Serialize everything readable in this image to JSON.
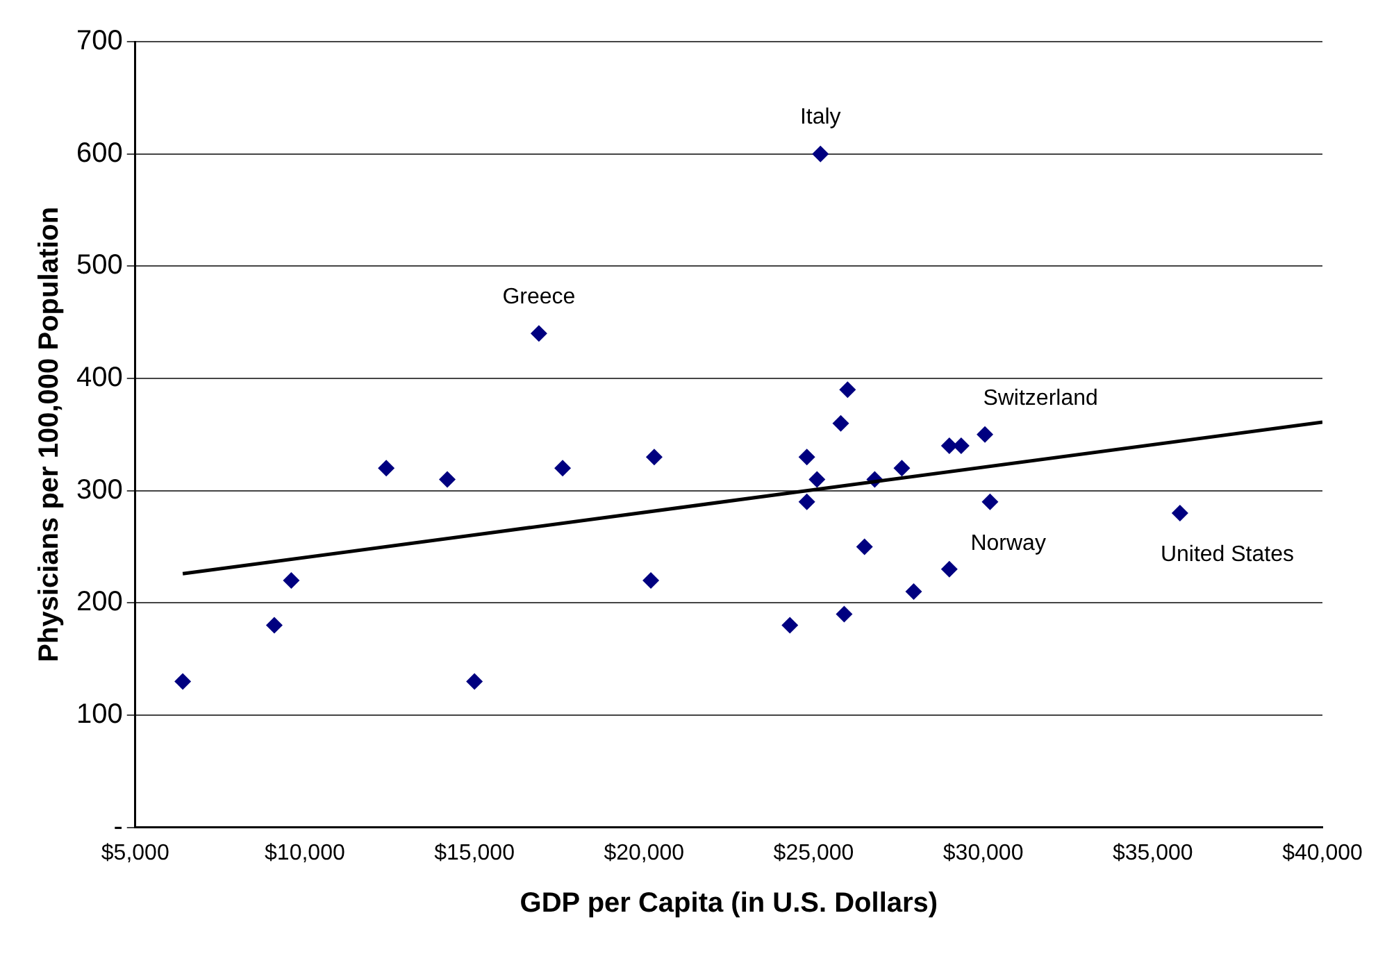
{
  "chart_data": {
    "type": "scatter",
    "xlabel": "GDP per Capita (in U.S. Dollars)",
    "ylabel": "Physicians per 100,000 Population",
    "xlim": [
      5000,
      40000
    ],
    "xticks": [
      {
        "value": 5000,
        "label": "$5,000"
      },
      {
        "value": 10000,
        "label": "$10,000"
      },
      {
        "value": 15000,
        "label": "$15,000"
      },
      {
        "value": 20000,
        "label": "$20,000"
      },
      {
        "value": 25000,
        "label": "$25,000"
      },
      {
        "value": 30000,
        "label": "$30,000"
      },
      {
        "value": 35000,
        "label": "$35,000"
      },
      {
        "value": 40000,
        "label": "$40,000"
      }
    ],
    "ylim": [
      0,
      700
    ],
    "yticks": [
      {
        "value": 0,
        "label": "-"
      },
      100,
      200,
      300,
      400,
      500,
      600,
      700
    ],
    "grid": "y",
    "legend": false,
    "marker": "diamond",
    "series": [
      {
        "type": "scatter",
        "color": "#000080",
        "x": [
          6400,
          9100,
          9600,
          12400,
          14200,
          15000,
          16900,
          17600,
          20300,
          20200,
          24300,
          24800,
          24800,
          25100,
          25200,
          25800,
          26000,
          25900,
          26500,
          26800,
          27600,
          27950,
          29000,
          29350,
          29000,
          30050,
          30200,
          35800
        ],
        "values": [
          130,
          180,
          220,
          320,
          310,
          130,
          440,
          320,
          330,
          220,
          180,
          330,
          290,
          310,
          600,
          360,
          390,
          190,
          250,
          310,
          320,
          210,
          340,
          340,
          230,
          350,
          290,
          280
        ]
      },
      {
        "type": "line",
        "color": "#000000",
        "marker": "none",
        "x": [
          6400,
          40000
        ],
        "values": [
          226,
          361
        ]
      }
    ],
    "annotations": [
      {
        "text": "Italy",
        "x": 25200,
        "y": 600
      },
      {
        "text": "Greece",
        "x": 16900,
        "y": 440
      },
      {
        "text": "Switzerland",
        "x": 30050,
        "y": 350
      },
      {
        "text": "Norway",
        "x": 30200,
        "y": 290
      },
      {
        "text": "United States",
        "x": 35800,
        "y": 280
      }
    ]
  }
}
